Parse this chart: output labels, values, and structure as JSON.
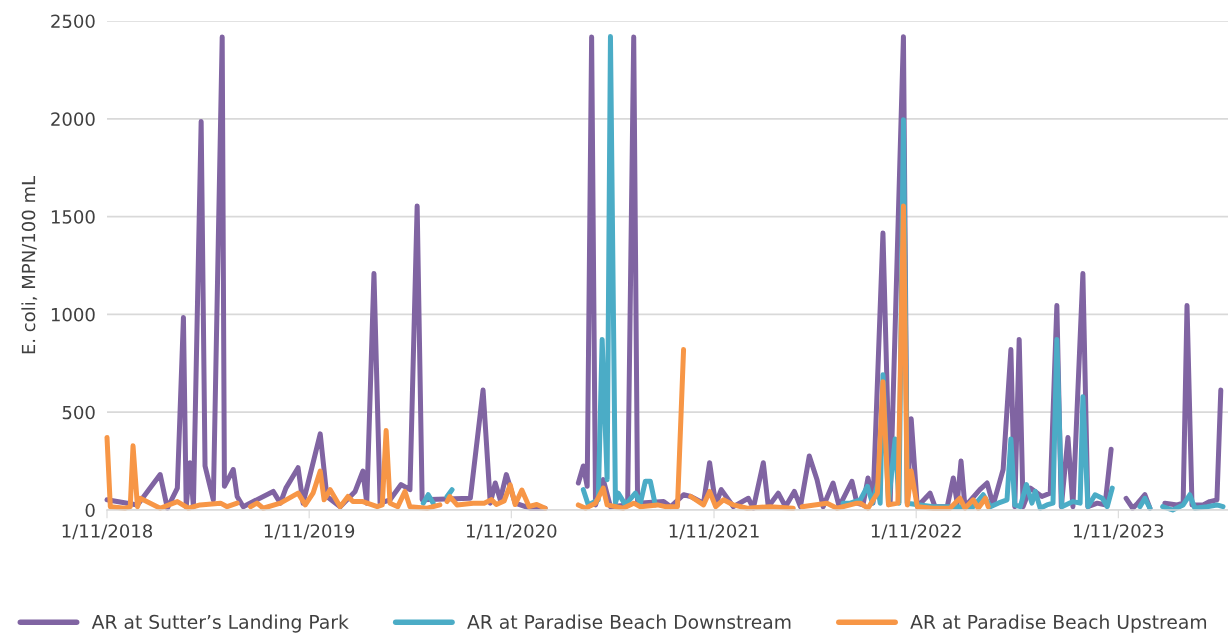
{
  "chart_data": {
    "type": "line",
    "ylabel": "E. coli, MPN/100 mL",
    "ylim": [
      0,
      2500
    ],
    "yticks": [
      0,
      500,
      1000,
      1500,
      2000,
      2500
    ],
    "xlim": [
      "2018-01-11",
      "2023-07-28"
    ],
    "xticks": [
      {
        "value": "2018-01-11",
        "label": "1/11/2018"
      },
      {
        "value": "2019-01-11",
        "label": "1/11/2019"
      },
      {
        "value": "2020-01-11",
        "label": "1/11/2020"
      },
      {
        "value": "2021-01-11",
        "label": "1/11/2021"
      },
      {
        "value": "2022-01-11",
        "label": "1/11/2022"
      },
      {
        "value": "2023-01-11",
        "label": "1/11/2023"
      }
    ],
    "grid": "y",
    "legend": "bottom",
    "marker": "none",
    "line_style": "solid",
    "series": [
      {
        "name": "AR at Sutter’s Landing Park",
        "color": "#8064a2",
        "x": [
          "2018-01-11",
          "2018-03-07",
          "2018-04-17",
          "2018-04-30",
          "2018-05-18",
          "2018-05-29",
          "2018-06-03",
          "2018-06-10",
          "2018-06-16",
          "2018-06-30",
          "2018-07-07",
          "2018-07-22",
          "2018-08-07",
          "2018-08-11",
          "2018-08-27",
          "2018-09-03",
          "2018-09-14",
          "2018-11-07",
          "2018-11-20",
          "2018-11-30",
          "2018-12-22",
          "2018-12-31",
          "2019-01-31",
          "2019-02-12",
          "2019-03-08",
          "2019-04-04",
          "2019-04-18",
          "2019-04-25",
          "2019-05-08",
          "2019-05-19",
          "2019-06-06",
          "2019-06-26",
          "2019-07-12",
          "2019-07-25",
          "2019-08-03",
          "2019-10-29",
          "2019-11-21",
          "2019-12-04",
          "2019-12-13",
          "2019-12-22",
          "2020-01-02",
          "2020-01-18",
          "2020-02-14",
          "2020-03-12",
          "2020-04-10",
          "2020-05-11",
          "2020-05-20",
          "2020-05-27",
          "2020-06-04",
          "2020-06-11",
          "2020-06-25",
          "2020-07-08",
          "2020-08-08",
          "2020-08-19",
          "2020-08-26",
          "2020-10-12",
          "2020-10-25",
          "2020-11-17",
          "2020-11-30",
          "2020-12-23",
          "2021-01-03",
          "2021-01-14",
          "2021-01-24",
          "2021-02-15",
          "2021-03-14",
          "2021-03-23",
          "2021-04-10",
          "2021-04-19",
          "2021-05-07",
          "2021-05-20",
          "2021-06-05",
          "2021-06-16",
          "2021-07-02",
          "2021-07-16",
          "2021-07-27",
          "2021-08-14",
          "2021-08-25",
          "2021-09-17",
          "2021-09-26",
          "2021-10-07",
          "2021-10-16",
          "2021-10-25",
          "2021-11-12",
          "2021-11-25",
          "2021-12-19",
          "2021-12-26",
          "2022-01-02",
          "2022-01-13",
          "2022-02-05",
          "2022-02-14",
          "2022-03-08",
          "2022-03-19",
          "2022-03-26",
          "2022-04-02",
          "2022-04-09",
          "2022-05-06",
          "2022-05-19",
          "2022-05-30",
          "2022-06-17",
          "2022-07-01",
          "2022-07-08",
          "2022-07-16",
          "2022-07-23",
          "2022-08-05",
          "2022-08-26",
          "2022-09-10",
          "2022-09-22",
          "2022-09-30",
          "2022-10-12",
          "2022-10-21",
          "2022-11-08",
          "2022-11-17",
          "2022-12-04",
          "2022-12-18",
          "2022-12-29",
          "2023-01-12",
          "2023-01-25",
          "2023-02-06",
          "2023-02-15",
          "2023-02-28",
          "2023-03-09",
          "2023-03-22",
          "2023-04-05",
          "2023-04-27",
          "2023-05-08",
          "2023-05-15",
          "2023-05-24",
          "2023-06-13",
          "2023-06-25",
          "2023-07-08",
          "2023-07-15"
        ],
        "values": [
          52,
          26,
          181,
          9,
          112,
          984,
          17,
          242,
          17,
          1986,
          225,
          52,
          2418,
          121,
          207,
          69,
          17,
          95,
          35,
          112,
          216,
          35,
          389,
          69,
          17,
          95,
          199,
          35,
          1209,
          35,
          52,
          130,
          104,
          1554,
          52,
          60,
          613,
          35,
          138,
          52,
          181,
          35,
          9,
          9,
          null,
          138,
          225,
          121,
          2418,
          26,
          155,
          17,
          26,
          2418,
          35,
          43,
          17,
          78,
          69,
          35,
          242,
          26,
          104,
          17,
          60,
          9,
          242,
          17,
          86,
          17,
          95,
          17,
          276,
          155,
          17,
          138,
          17,
          147,
          35,
          26,
          164,
          35,
          1416,
          35,
          2420,
          35,
          466,
          17,
          86,
          17,
          17,
          164,
          35,
          250,
          17,
          104,
          138,
          26,
          207,
          820,
          17,
          872,
          17,
          112,
          69,
          86,
          1045,
          17,
          371,
          17,
          1209,
          17,
          35,
          26,
          311,
          null,
          60,
          9,
          35,
          78,
          9,
          null,
          35,
          26,
          35,
          1045,
          26,
          26,
          43,
          52,
          613
        ]
      },
      {
        "name": "AR at Paradise Beach Downstream",
        "color": "#4bacc6",
        "x": [
          "2019-08-05",
          "2019-08-14",
          "2019-08-23",
          "2019-08-28",
          "2019-09-17",
          "2019-09-26",
          "2020-01-01",
          "2020-05-20",
          "2020-05-29",
          "2020-06-16",
          "2020-06-23",
          "2020-07-02",
          "2020-07-08",
          "2020-07-17",
          "2020-07-22",
          "2020-08-04",
          "2020-08-22",
          "2020-08-31",
          "2020-09-09",
          "2020-09-18",
          "2020-09-27",
          "2021-03-01",
          "2021-09-01",
          "2021-09-14",
          "2021-10-02",
          "2021-10-15",
          "2021-10-24",
          "2021-11-02",
          "2021-11-07",
          "2021-11-12",
          "2021-11-22",
          "2021-12-04",
          "2021-12-11",
          "2021-12-19",
          "2021-12-26",
          "2022-01-18",
          "2022-02-11",
          "2022-03-08",
          "2022-03-31",
          "2022-04-24",
          "2022-05-12",
          "2022-05-25",
          "2022-06-08",
          "2022-06-24",
          "2022-07-01",
          "2022-07-08",
          "2022-07-18",
          "2022-07-29",
          "2022-08-08",
          "2022-08-14",
          "2022-08-23",
          "2022-09-04",
          "2022-09-15",
          "2022-09-22",
          "2022-10-01",
          "2022-10-21",
          "2022-11-03",
          "2022-11-08",
          "2022-11-17",
          "2022-11-30",
          "2022-12-13",
          "2022-12-22",
          "2022-12-31",
          "2023-01-20",
          "2023-02-19",
          "2023-02-28",
          "2023-03-09",
          "2023-03-20",
          "2023-04-01",
          "2023-04-19",
          "2023-05-08",
          "2023-05-20",
          "2023-05-29",
          "2023-06-20",
          "2023-07-08",
          "2023-07-19"
        ],
        "values": [
          35,
          78,
          35,
          null,
          69,
          104,
          null,
          104,
          26,
          52,
          872,
          155,
          2421,
          35,
          86,
          26,
          86,
          35,
          147,
          147,
          26,
          null,
          35,
          35,
          52,
          121,
          35,
          130,
          35,
          691,
          35,
          363,
          35,
          1995,
          35,
          26,
          17,
          17,
          17,
          17,
          78,
          17,
          35,
          52,
          363,
          26,
          17,
          130,
          35,
          95,
          9,
          26,
          35,
          872,
          17,
          43,
          35,
          579,
          17,
          78,
          60,
          17,
          112,
          null,
          17,
          60,
          9,
          null,
          17,
          0,
          26,
          78,
          9,
          17,
          26,
          17
        ]
      },
      {
        "name": "AR at Paradise Beach Upstream",
        "color": "#f79646",
        "x": [
          "2018-01-11",
          "2018-01-17",
          "2018-02-13",
          "2018-02-22",
          "2018-02-27",
          "2018-03-07",
          "2018-03-12",
          "2018-04-17",
          "2018-05-18",
          "2018-06-07",
          "2018-06-28",
          "2018-08-04",
          "2018-08-16",
          "2018-09-03",
          "2018-09-15",
          "2018-09-27",
          "2018-10-09",
          "2018-10-20",
          "2018-11-20",
          "2018-12-22",
          "2019-01-04",
          "2019-01-18",
          "2019-01-31",
          "2019-02-07",
          "2019-02-18",
          "2019-03-08",
          "2019-03-22",
          "2019-03-31",
          "2019-04-18",
          "2019-05-14",
          "2019-05-23",
          "2019-05-30",
          "2019-06-06",
          "2019-06-20",
          "2019-07-03",
          "2019-07-12",
          "2019-08-12",
          "2019-09-04",
          "2019-09-10",
          "2019-09-17",
          "2019-09-22",
          "2019-10-05",
          "2019-11-03",
          "2019-11-23",
          "2019-12-06",
          "2019-12-15",
          "2019-12-29",
          "2020-01-09",
          "2020-01-18",
          "2020-01-30",
          "2020-02-12",
          "2020-02-26",
          "2020-03-12",
          "2020-04-10",
          "2020-05-11",
          "2020-05-24",
          "2020-06-11",
          "2020-06-25",
          "2020-07-02",
          "2020-07-31",
          "2020-08-19",
          "2020-08-31",
          "2020-10-01",
          "2020-10-15",
          "2020-11-06",
          "2020-11-17",
          "2020-11-23",
          "2020-11-30",
          "2020-12-23",
          "2021-01-03",
          "2021-01-14",
          "2021-01-28",
          "2021-02-15",
          "2021-03-12",
          "2021-04-22",
          "2021-06-03",
          "2021-06-10",
          "2021-06-19",
          "2021-08-03",
          "2021-08-21",
          "2021-09-26",
          "2021-10-02",
          "2021-10-16",
          "2021-11-02",
          "2021-11-12",
          "2021-11-22",
          "2021-12-09",
          "2021-12-19",
          "2021-12-26",
          "2022-01-02",
          "2022-01-13",
          "2022-02-11",
          "2022-03-13",
          "2022-03-31",
          "2022-04-09",
          "2022-04-24",
          "2022-05-03",
          "2022-05-16",
          "2022-05-21"
        ],
        "values": [
          371,
          17,
          9,
          17,
          328,
          17,
          60,
          9,
          43,
          9,
          26,
          35,
          17,
          35,
          null,
          17,
          35,
          9,
          35,
          86,
          26,
          86,
          199,
          52,
          104,
          17,
          69,
          43,
          43,
          17,
          26,
          406,
          35,
          17,
          95,
          17,
          9,
          26,
          null,
          43,
          69,
          26,
          35,
          35,
          53,
          28,
          46,
          129,
          28,
          102,
          18,
          28,
          9,
          null,
          26,
          9,
          35,
          112,
          26,
          9,
          35,
          17,
          26,
          17,
          17,
          820,
          null,
          69,
          26,
          95,
          17,
          52,
          26,
          9,
          17,
          9,
          null,
          17,
          35,
          9,
          35,
          35,
          9,
          86,
          656,
          26,
          35,
          1554,
          26,
          199,
          17,
          9,
          9,
          60,
          9,
          52,
          9,
          60,
          17
        ]
      }
    ]
  }
}
